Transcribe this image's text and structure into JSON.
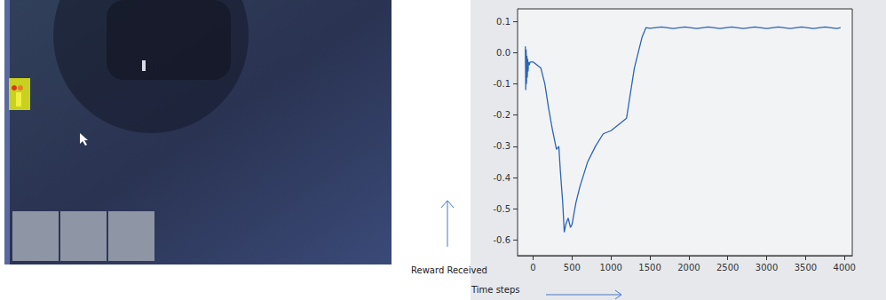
{
  "chart_data": {
    "type": "line",
    "xlabel": "Time steps",
    "ylabel": "Reward Received",
    "color": "#2a64b4",
    "grid": false,
    "x": [
      -100,
      -95,
      -90,
      -85,
      -80,
      -75,
      -70,
      -65,
      -60,
      -50,
      -40,
      -20,
      0,
      50,
      100,
      150,
      200,
      250,
      300,
      330,
      350,
      380,
      400,
      420,
      450,
      480,
      500,
      550,
      600,
      700,
      800,
      900,
      1000,
      1100,
      1200,
      1300,
      1400,
      1450,
      1500,
      1650,
      1800,
      1950,
      2100,
      2250,
      2400,
      2550,
      2700,
      2850,
      3000,
      3150,
      3300,
      3450,
      3600,
      3750,
      3900,
      3950
    ],
    "values": [
      0.02,
      -0.12,
      0.01,
      -0.1,
      -0.01,
      -0.08,
      -0.02,
      -0.06,
      -0.03,
      -0.04,
      -0.03,
      -0.03,
      -0.03,
      -0.04,
      -0.05,
      -0.1,
      -0.18,
      -0.25,
      -0.31,
      -0.3,
      -0.38,
      -0.48,
      -0.575,
      -0.55,
      -0.53,
      -0.56,
      -0.55,
      -0.48,
      -0.43,
      -0.35,
      -0.3,
      -0.26,
      -0.25,
      -0.23,
      -0.21,
      -0.05,
      0.05,
      0.08,
      0.078,
      0.082,
      0.077,
      0.082,
      0.077,
      0.082,
      0.077,
      0.082,
      0.077,
      0.082,
      0.077,
      0.082,
      0.077,
      0.082,
      0.077,
      0.082,
      0.077,
      0.08
    ],
    "xlim": [
      -200,
      4100
    ],
    "xticks": [
      0,
      500,
      1000,
      1500,
      2000,
      2500,
      3000,
      3500,
      4000
    ],
    "ylim": [
      -0.65,
      0.14
    ],
    "yticks": [
      -0.6,
      -0.5,
      -0.4,
      -0.3,
      -0.2,
      -0.1,
      {
        "value": 0,
        "label": "0.0"
      },
      0.1
    ]
  }
}
